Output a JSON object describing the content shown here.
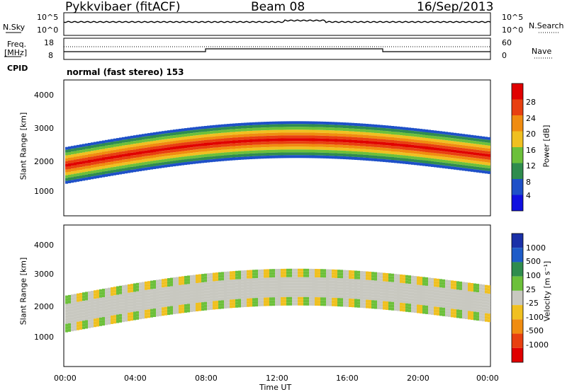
{
  "header": {
    "radar": "Pykkvibaer (fitACF)",
    "beam": "Beam 08",
    "date": "16/Sep/2013"
  },
  "top_panels": {
    "nsky_label": "N.Sky",
    "nsearch_label": "N.Search",
    "freq_label_1": "Freq.",
    "freq_label_2": "[MHz]",
    "nave_label": "Nave",
    "cpid_label": "CPID",
    "cpid_text": "normal (fast stereo) 153",
    "noise_left_ticks": [
      "10^5",
      "10^0"
    ],
    "noise_right_ticks": [
      "10^5",
      "10^0"
    ],
    "freq_left_ticks": [
      "18",
      "8"
    ],
    "nave_right_ticks": [
      "60",
      "0"
    ]
  },
  "chart_data": [
    {
      "type": "heatmap",
      "name": "power",
      "ylabel": "Slant Range [km]",
      "colorbar_label": "Power [dB]",
      "y_ticks": [
        "4000",
        "3000",
        "2000",
        "1000"
      ],
      "colorbar_ticks": [
        "28",
        "24",
        "20",
        "16",
        "12",
        "8",
        "4"
      ],
      "colorscale": [
        "#1010e0",
        "#1e50c8",
        "#2f8c4e",
        "#6cc03a",
        "#f0c020",
        "#f08c10",
        "#e84010",
        "#e00000"
      ]
    },
    {
      "type": "heatmap",
      "name": "velocity",
      "ylabel": "Slant Range [km]",
      "colorbar_label": "Velocity [m s⁻¹]",
      "y_ticks": [
        "4000",
        "3000",
        "2000",
        "1000"
      ],
      "colorbar_ticks": [
        "1000",
        "500",
        "100",
        "25",
        "-25",
        "-100",
        "-500",
        "-1000"
      ],
      "colorscale": [
        "#1a30a8",
        "#1e5cc8",
        "#2f8c4e",
        "#6cc03a",
        "#c8c8c0",
        "#f0c020",
        "#f08c10",
        "#e84010",
        "#e00000"
      ]
    }
  ],
  "x_axis": {
    "label": "Time UT",
    "ticks": [
      "00:00",
      "04:00",
      "08:00",
      "12:00",
      "16:00",
      "20:00",
      "00:00"
    ]
  }
}
